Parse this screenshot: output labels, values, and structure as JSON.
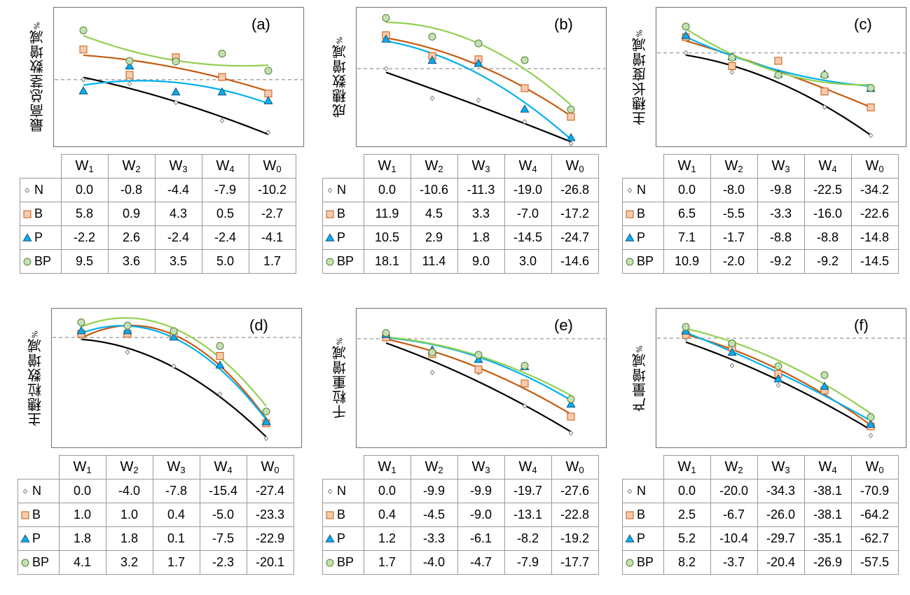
{
  "columns": [
    "W1",
    "W2",
    "W3",
    "W4",
    "W0"
  ],
  "series_styles": [
    {
      "name": "N",
      "marker": "diamond",
      "marker_fill": "#ffffff",
      "marker_stroke": "#7f7f7f",
      "line_color": "#000000"
    },
    {
      "name": "B",
      "marker": "square",
      "marker_fill": "#f8cbad",
      "marker_stroke": "#c55a11",
      "line_color": "#c55a11"
    },
    {
      "name": "P",
      "marker": "triangle",
      "marker_fill": "#00b0f0",
      "marker_stroke": "#1f4e79",
      "line_color": "#00b0f0"
    },
    {
      "name": "BP",
      "marker": "circle",
      "marker_fill": "#c5e0b4",
      "marker_stroke": "#548235",
      "line_color": "#92d050"
    }
  ],
  "reference_line_color": "#a6a6a6",
  "chart_data": [
    {
      "type": "scatter",
      "label": "(a)",
      "ylabel": "最高总茎数增减",
      "yunit": "%",
      "categories": [
        "W1",
        "W2",
        "W3",
        "W4",
        "W0"
      ],
      "ylim": [
        -13,
        14
      ],
      "series": [
        {
          "name": "N",
          "values": [
            0.0,
            -0.8,
            -4.4,
            -7.9,
            -10.2
          ]
        },
        {
          "name": "B",
          "values": [
            5.8,
            0.9,
            4.3,
            0.5,
            -2.7
          ]
        },
        {
          "name": "P",
          "values": [
            -2.2,
            2.6,
            -2.4,
            -2.4,
            -4.1
          ]
        },
        {
          "name": "BP",
          "values": [
            9.5,
            3.6,
            3.5,
            5.0,
            1.7
          ]
        }
      ]
    },
    {
      "type": "scatter",
      "label": "(b)",
      "ylabel": "成穗数增减",
      "yunit": "%",
      "categories": [
        "W1",
        "W2",
        "W3",
        "W4",
        "W0"
      ],
      "ylim": [
        -28,
        22
      ],
      "series": [
        {
          "name": "N",
          "values": [
            0.0,
            -10.6,
            -11.3,
            -19.0,
            -26.8
          ]
        },
        {
          "name": "B",
          "values": [
            11.9,
            4.5,
            3.3,
            -7.0,
            -17.2
          ]
        },
        {
          "name": "P",
          "values": [
            10.5,
            2.9,
            1.8,
            -14.5,
            -24.7
          ]
        },
        {
          "name": "BP",
          "values": [
            18.1,
            11.4,
            9.0,
            3.0,
            -14.6
          ]
        }
      ]
    },
    {
      "type": "scatter",
      "label": "(c)",
      "ylabel": "主穗长度增减",
      "yunit": "%",
      "categories": [
        "W1",
        "W2",
        "W3",
        "W4",
        "W0"
      ],
      "ylim": [
        -39,
        19
      ],
      "series": [
        {
          "name": "N",
          "values": [
            0.0,
            -8.0,
            -9.8,
            -22.5,
            -34.2
          ]
        },
        {
          "name": "B",
          "values": [
            6.5,
            -5.5,
            -3.3,
            -16.0,
            -22.6
          ]
        },
        {
          "name": "P",
          "values": [
            7.1,
            -1.7,
            -8.8,
            -8.8,
            -14.8
          ]
        },
        {
          "name": "BP",
          "values": [
            10.9,
            -2.0,
            -9.2,
            -9.2,
            -14.5
          ]
        }
      ]
    },
    {
      "type": "scatter",
      "label": "(d)",
      "ylabel": "主穗粒数增减",
      "yunit": "%",
      "categories": [
        "W1",
        "W2",
        "W3",
        "W4",
        "W0"
      ],
      "ylim": [
        -30,
        8
      ],
      "series": [
        {
          "name": "N",
          "values": [
            0.0,
            -4.0,
            -7.8,
            -15.4,
            -27.4
          ]
        },
        {
          "name": "B",
          "values": [
            1.0,
            1.0,
            0.4,
            -5.0,
            -23.3
          ]
        },
        {
          "name": "P",
          "values": [
            1.8,
            1.8,
            0.1,
            -7.5,
            -22.9
          ]
        },
        {
          "name": "BP",
          "values": [
            4.1,
            3.2,
            1.7,
            -2.3,
            -20.1
          ]
        }
      ]
    },
    {
      "type": "scatter",
      "label": "(e)",
      "ylabel": "千粒重增减",
      "yunit": "%",
      "categories": [
        "W1",
        "W2",
        "W3",
        "W4",
        "W0"
      ],
      "ylim": [
        -32,
        9
      ],
      "series": [
        {
          "name": "N",
          "values": [
            0.0,
            -9.9,
            -9.9,
            -19.7,
            -27.6
          ]
        },
        {
          "name": "B",
          "values": [
            0.4,
            -4.5,
            -9.0,
            -13.1,
            -22.8
          ]
        },
        {
          "name": "P",
          "values": [
            1.2,
            -3.3,
            -6.1,
            -8.2,
            -19.2
          ]
        },
        {
          "name": "BP",
          "values": [
            1.7,
            -4.0,
            -4.7,
            -7.9,
            -17.7
          ]
        }
      ]
    },
    {
      "type": "scatter",
      "label": "(f)",
      "ylabel": "产量增减",
      "yunit": "%",
      "categories": [
        "W1",
        "W2",
        "W3",
        "W4",
        "W0"
      ],
      "ylim": [
        -80,
        22
      ],
      "series": [
        {
          "name": "N",
          "values": [
            0.0,
            -20.0,
            -34.3,
            -38.1,
            -70.9
          ]
        },
        {
          "name": "B",
          "values": [
            2.5,
            -6.7,
            -26.0,
            -38.1,
            -64.2
          ]
        },
        {
          "name": "P",
          "values": [
            5.2,
            -10.4,
            -29.7,
            -35.1,
            -62.7
          ]
        },
        {
          "name": "BP",
          "values": [
            8.2,
            -3.7,
            -20.4,
            -26.9,
            -57.5
          ]
        }
      ]
    }
  ]
}
